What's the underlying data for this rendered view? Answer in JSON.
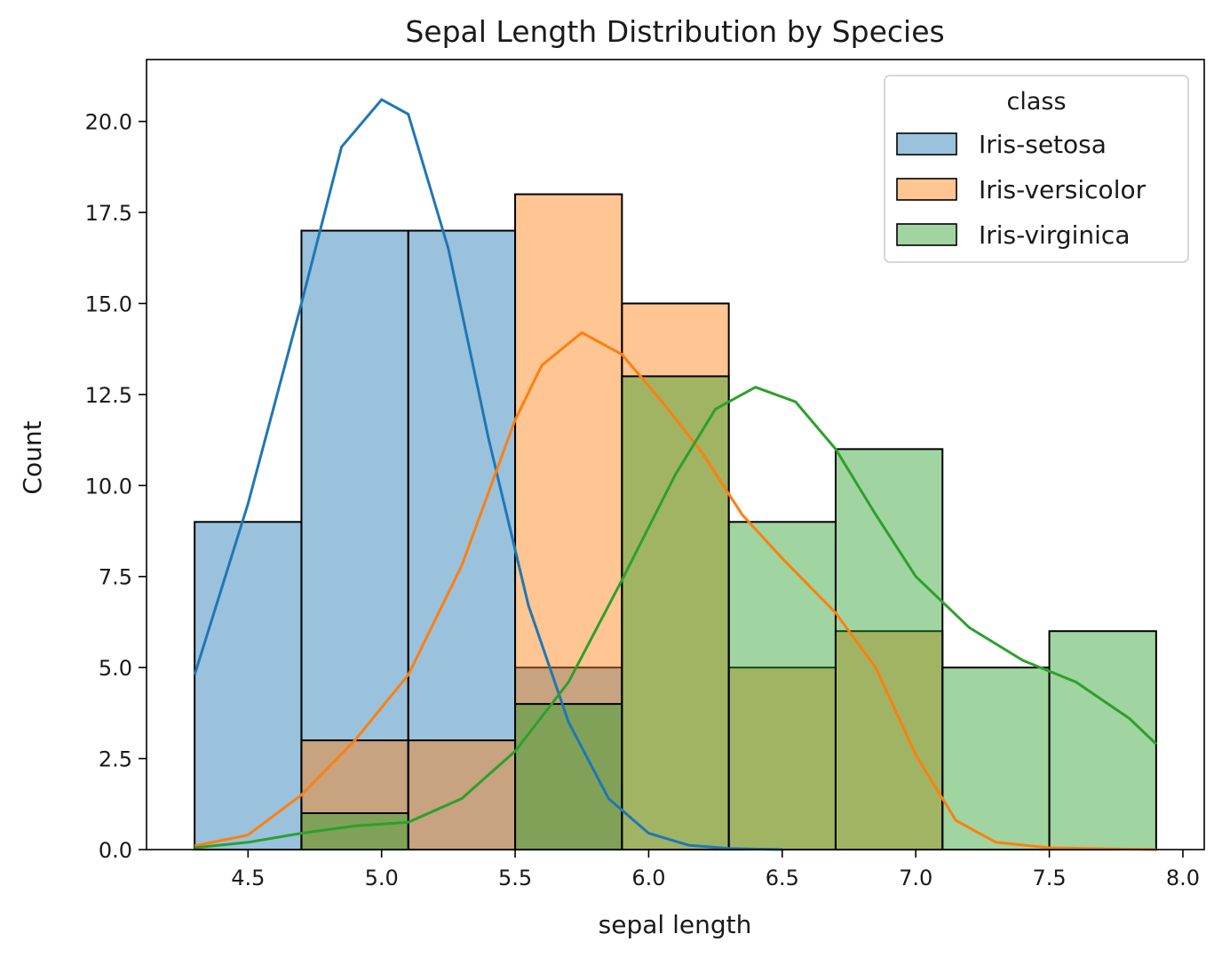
{
  "chart_data": {
    "type": "histogram",
    "title": "Sepal Length Distribution by Species",
    "xlabel": "sepal length",
    "ylabel": "Count",
    "xlim": [
      4.12,
      8.08
    ],
    "ylim": [
      0,
      21.7
    ],
    "x_ticks": [
      4.5,
      5.0,
      5.5,
      6.0,
      6.5,
      7.0,
      7.5,
      8.0
    ],
    "y_ticks": [
      0.0,
      2.5,
      5.0,
      7.5,
      10.0,
      12.5,
      15.0,
      17.5,
      20.0
    ],
    "x_tick_labels": [
      "4.5",
      "5.0",
      "5.5",
      "6.0",
      "6.5",
      "7.0",
      "7.5",
      "8.0"
    ],
    "y_tick_labels": [
      "0.0",
      "2.5",
      "5.0",
      "7.5",
      "10.0",
      "12.5",
      "15.0",
      "17.5",
      "20.0"
    ],
    "bin_edges": [
      4.3,
      4.7,
      5.1,
      5.5,
      5.9,
      6.3,
      6.7,
      7.1,
      7.5,
      7.9
    ],
    "grid": false,
    "legend": {
      "title": "class",
      "placement": "top-right",
      "entries": [
        "Iris-setosa",
        "Iris-versicolor",
        "Iris-virginica"
      ]
    },
    "series": [
      {
        "name": "Iris-setosa",
        "color": "#1f77b4",
        "counts": [
          9,
          17,
          17,
          5,
          0,
          0,
          0,
          0,
          0
        ],
        "kde": [
          [
            4.3,
            4.8
          ],
          [
            4.5,
            9.5
          ],
          [
            4.7,
            15.0
          ],
          [
            4.85,
            19.3
          ],
          [
            5.0,
            20.6
          ],
          [
            5.1,
            20.2
          ],
          [
            5.25,
            16.5
          ],
          [
            5.4,
            11.3
          ],
          [
            5.55,
            6.7
          ],
          [
            5.7,
            3.5
          ],
          [
            5.85,
            1.4
          ],
          [
            6.0,
            0.45
          ],
          [
            6.15,
            0.12
          ],
          [
            6.3,
            0.03
          ],
          [
            6.5,
            0.0
          ]
        ]
      },
      {
        "name": "Iris-versicolor",
        "color": "#ff7f0e",
        "counts": [
          0,
          3,
          3,
          18,
          15,
          5,
          6,
          0,
          0
        ],
        "kde": [
          [
            4.3,
            0.1
          ],
          [
            4.5,
            0.4
          ],
          [
            4.7,
            1.5
          ],
          [
            4.9,
            3.0
          ],
          [
            5.1,
            4.8
          ],
          [
            5.3,
            7.8
          ],
          [
            5.5,
            11.8
          ],
          [
            5.6,
            13.3
          ],
          [
            5.75,
            14.2
          ],
          [
            5.9,
            13.6
          ],
          [
            6.05,
            12.3
          ],
          [
            6.2,
            10.9
          ],
          [
            6.35,
            9.2
          ],
          [
            6.5,
            8.0
          ],
          [
            6.7,
            6.5
          ],
          [
            6.85,
            5.0
          ],
          [
            7.0,
            2.6
          ],
          [
            7.15,
            0.8
          ],
          [
            7.3,
            0.2
          ],
          [
            7.5,
            0.05
          ],
          [
            7.9,
            0.0
          ]
        ]
      },
      {
        "name": "Iris-virginica",
        "color": "#2ca02c",
        "counts": [
          0,
          1,
          0,
          4,
          13,
          9,
          11,
          5,
          6
        ],
        "kde": [
          [
            4.3,
            0.05
          ],
          [
            4.5,
            0.2
          ],
          [
            4.7,
            0.45
          ],
          [
            4.9,
            0.65
          ],
          [
            5.1,
            0.75
          ],
          [
            5.3,
            1.4
          ],
          [
            5.5,
            2.7
          ],
          [
            5.7,
            4.6
          ],
          [
            5.9,
            7.4
          ],
          [
            6.1,
            10.3
          ],
          [
            6.25,
            12.1
          ],
          [
            6.4,
            12.7
          ],
          [
            6.55,
            12.3
          ],
          [
            6.7,
            11.0
          ],
          [
            6.85,
            9.2
          ],
          [
            7.0,
            7.5
          ],
          [
            7.2,
            6.1
          ],
          [
            7.4,
            5.2
          ],
          [
            7.6,
            4.6
          ],
          [
            7.8,
            3.6
          ],
          [
            7.9,
            2.9
          ]
        ]
      }
    ]
  }
}
